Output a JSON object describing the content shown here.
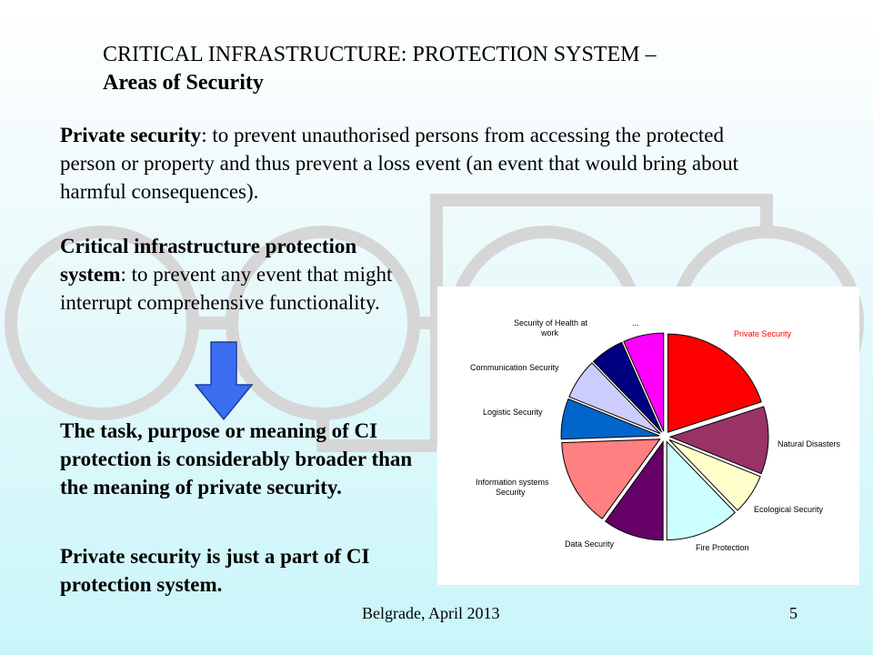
{
  "title": {
    "line1": "CRITICAL INFRASTRUCTURE: PROTECTION SYSTEM –",
    "line2": "Areas of Security"
  },
  "paragraph1": {
    "term": "Private security",
    "text": ": to prevent unauthorised persons from accessing the protected person or property and thus prevent a loss event (an event that would bring about harmful consequences)."
  },
  "paragraph2": {
    "term": "Critical infrastructure protection system",
    "text": ": to prevent any event that might interrupt comprehensive functionality."
  },
  "paragraph3": "The task, purpose or meaning of CI protection is considerably broader than the meaning of private security.",
  "paragraph4": "Private security is just a part of CI protection system.",
  "footer": {
    "place_date": "Belgrade, April 2013",
    "page_number": "5"
  },
  "colors": {
    "arrow": "#3a6df0",
    "decoration": "#d6d6d6"
  },
  "chart_data": {
    "type": "pie",
    "title": "",
    "slices": [
      {
        "label": "Private Security",
        "value": 18,
        "color": "#ff0000",
        "label_color": "#ff0000"
      },
      {
        "label": "Natural Disasters",
        "value": 10,
        "color": "#993366",
        "label_color": "#000000"
      },
      {
        "label": "Ecological Security",
        "value": 6,
        "color": "#ffffcc",
        "label_color": "#000000"
      },
      {
        "label": "Fire Protection",
        "value": 11,
        "color": "#ccffff",
        "label_color": "#000000"
      },
      {
        "label": "Data Security",
        "value": 9,
        "color": "#660066",
        "label_color": "#000000"
      },
      {
        "label": "Information systems Security",
        "value": 13,
        "color": "#ff8080",
        "label_color": "#000000"
      },
      {
        "label": "Logistic Security",
        "value": 6,
        "color": "#0066cc",
        "label_color": "#000000"
      },
      {
        "label": "Communication Security",
        "value": 6,
        "color": "#ccccff",
        "label_color": "#000000"
      },
      {
        "label": "Security of Health at work",
        "value": 5,
        "color": "#000080",
        "label_color": "#000000"
      },
      {
        "label": "...",
        "value": 6,
        "color": "#ff00ff",
        "label_color": "#000000"
      }
    ]
  }
}
